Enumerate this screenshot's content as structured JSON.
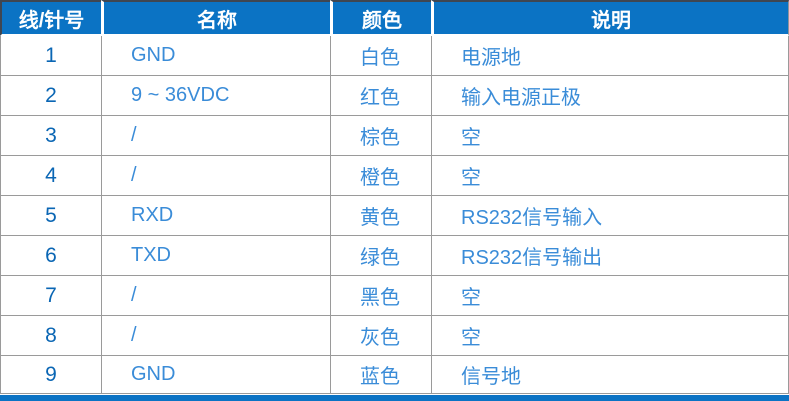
{
  "table": {
    "columns": [
      {
        "key": "pin",
        "label": "线/针号"
      },
      {
        "key": "name",
        "label": "名称"
      },
      {
        "key": "color",
        "label": "颜色"
      },
      {
        "key": "desc",
        "label": "说明"
      }
    ],
    "rows": [
      {
        "pin": "1",
        "name": "GND",
        "color": "白色",
        "desc": "电源地"
      },
      {
        "pin": "2",
        "name": "9 ~ 36VDC",
        "color": "红色",
        "desc": "输入电源正极"
      },
      {
        "pin": "3",
        "name": "/",
        "color": "棕色",
        "desc": "空"
      },
      {
        "pin": "4",
        "name": "/",
        "color": "橙色",
        "desc": "空"
      },
      {
        "pin": "5",
        "name": "RXD",
        "color": "黄色",
        "desc": "RS232信号输入"
      },
      {
        "pin": "6",
        "name": "TXD",
        "color": "绿色",
        "desc": "RS232信号输出"
      },
      {
        "pin": "7",
        "name": "/",
        "color": "黑色",
        "desc": "空"
      },
      {
        "pin": "8",
        "name": "/",
        "color": "灰色",
        "desc": "空"
      },
      {
        "pin": "9",
        "name": "GND",
        "color": "蓝色",
        "desc": "信号地"
      }
    ]
  },
  "colors": {
    "header_bg": "#0b73c4",
    "header_text": "#ffffff",
    "pin_number_text": "#0a66b4",
    "body_text": "#3a8cd8",
    "grid_border": "#9a9a9a",
    "top_edge": "#3f4651",
    "footer_bar": "#0b73c4"
  }
}
